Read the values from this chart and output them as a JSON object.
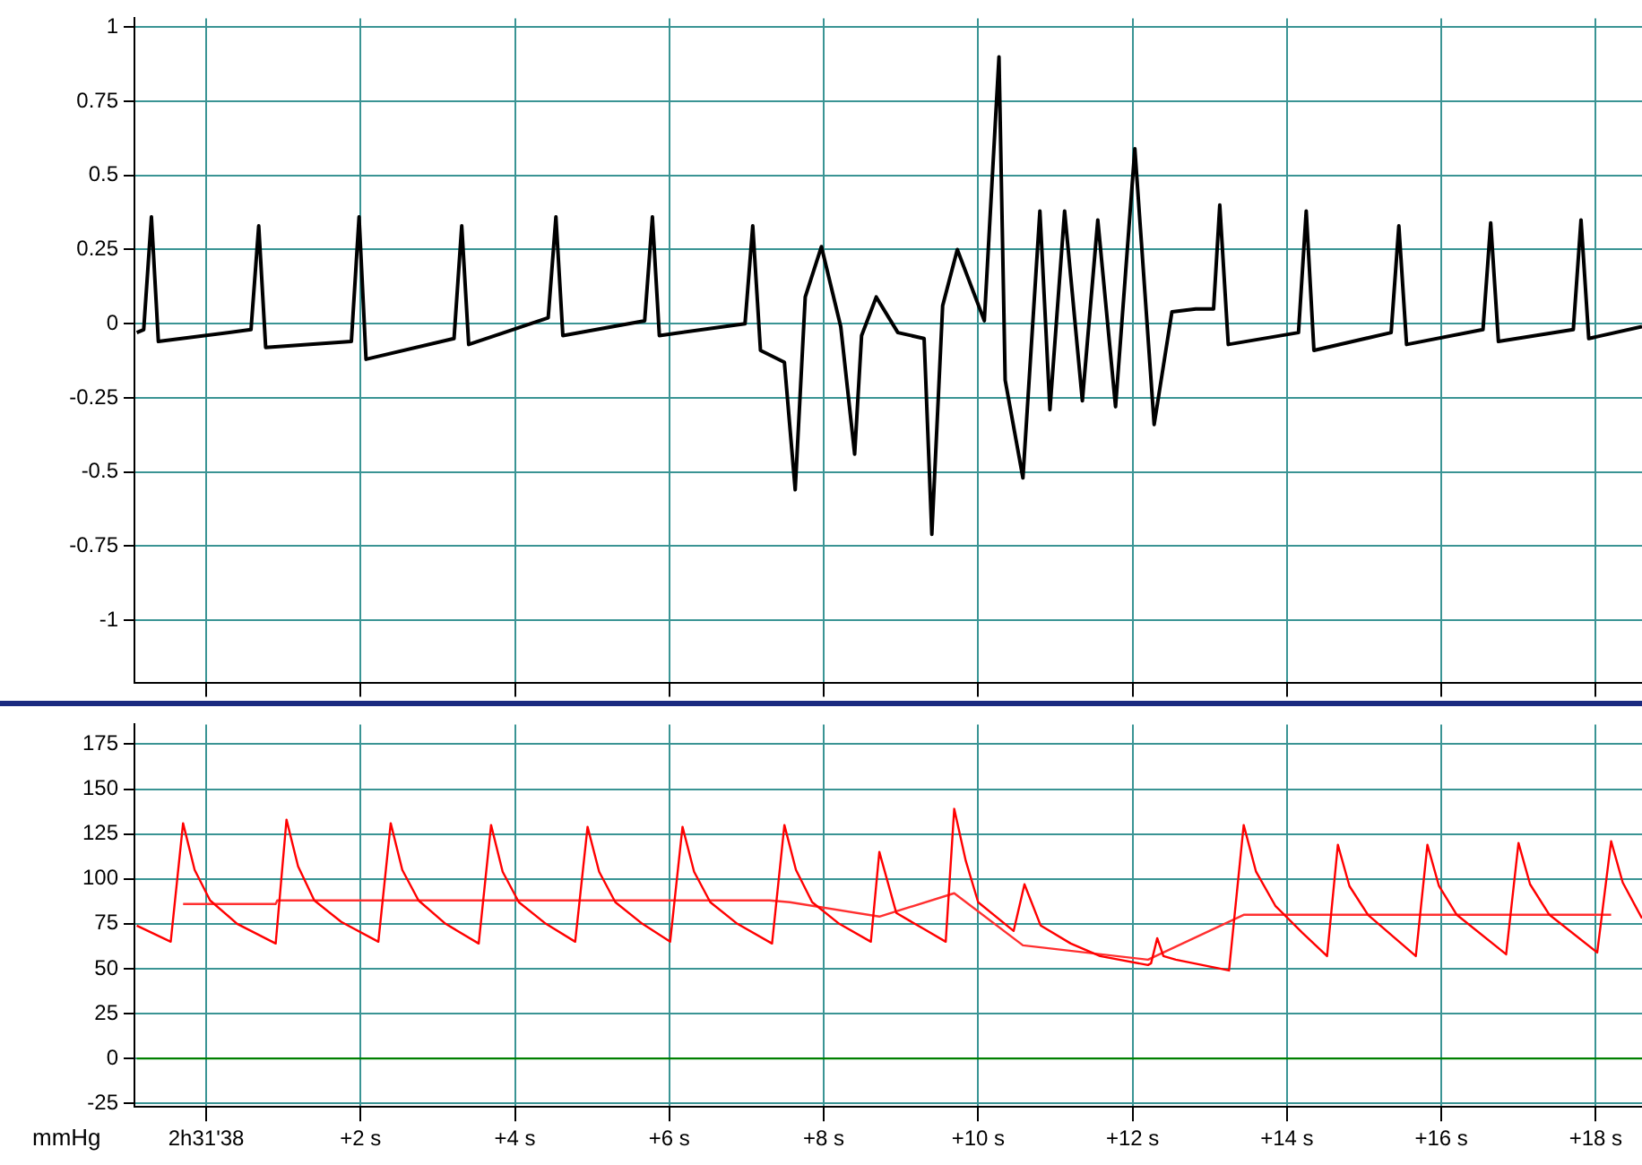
{
  "chart_data": [
    {
      "type": "line",
      "marker": "none",
      "grid": true,
      "tick_labels": "y",
      "xlim": [
        -0.93,
        18.6
      ],
      "ylim": [
        -1.21,
        1.03
      ],
      "xticks": [
        {
          "value": 0,
          "label": null
        },
        {
          "value": 2,
          "label": null
        },
        {
          "value": 4,
          "label": null
        },
        {
          "value": 6,
          "label": null
        },
        {
          "value": 8,
          "label": null
        },
        {
          "value": 10,
          "label": null
        },
        {
          "value": 12,
          "label": null
        },
        {
          "value": 14,
          "label": null
        },
        {
          "value": 16,
          "label": null
        },
        {
          "value": 18,
          "label": null
        }
      ],
      "yticks": [
        -1,
        -0.75,
        -0.5,
        -0.25,
        0,
        0.25,
        0.5,
        0.75,
        1
      ],
      "series": [
        {
          "color": "#000000",
          "x": [
            -0.9,
            -0.81,
            -0.71,
            -0.62,
            0.58,
            0.68,
            0.77,
            1.88,
            1.98,
            2.07,
            3.21,
            3.31,
            3.4,
            4.43,
            4.53,
            4.62,
            5.68,
            5.78,
            5.87,
            6.98,
            7.08,
            7.18,
            7.49,
            7.63,
            7.76,
            7.97,
            8.22,
            8.4,
            8.49,
            8.68,
            8.96,
            9.3,
            9.4,
            9.54,
            9.73,
            10.08,
            10.27,
            10.35,
            10.58,
            10.8,
            10.93,
            11.12,
            11.35,
            11.55,
            11.78,
            12.03,
            12.28,
            12.51,
            12.82,
            13.05,
            13.13,
            13.24,
            14.15,
            14.25,
            14.35,
            15.35,
            15.45,
            15.55,
            16.54,
            16.64,
            16.74,
            17.71,
            17.81,
            17.91,
            18.6
          ],
          "values": [
            -0.03,
            -0.02,
            0.36,
            -0.06,
            -0.02,
            0.33,
            -0.08,
            -0.06,
            0.36,
            -0.12,
            -0.05,
            0.33,
            -0.07,
            0.02,
            0.36,
            -0.04,
            0.01,
            0.36,
            -0.04,
            0,
            0.33,
            -0.09,
            -0.13,
            -0.56,
            0.09,
            0.26,
            -0.01,
            -0.44,
            -0.04,
            0.09,
            -0.03,
            -0.05,
            -0.71,
            0.06,
            0.25,
            0.01,
            0.9,
            -0.19,
            -0.52,
            0.38,
            -0.29,
            0.38,
            -0.26,
            0.35,
            -0.28,
            0.59,
            -0.34,
            0.04,
            0.05,
            0.05,
            0.4,
            -0.07,
            -0.03,
            0.38,
            -0.09,
            -0.03,
            0.33,
            -0.07,
            -0.02,
            0.34,
            -0.06,
            -0.02,
            0.35,
            -0.05,
            -0.01
          ]
        }
      ]
    },
    {
      "type": "line",
      "marker": "none",
      "grid": true,
      "ylabel": "mmHg",
      "xlim": [
        -0.93,
        18.6
      ],
      "ylim": [
        -27,
        186
      ],
      "xticks": [
        {
          "value": 0,
          "label": "2h31'38"
        },
        {
          "value": 2,
          "label": "+2 s"
        },
        {
          "value": 4,
          "label": "+4 s"
        },
        {
          "value": 6,
          "label": "+6 s"
        },
        {
          "value": 8,
          "label": "+8 s"
        },
        {
          "value": 10,
          "label": "+10 s"
        },
        {
          "value": 12,
          "label": "+12 s"
        },
        {
          "value": 14,
          "label": "+14 s"
        },
        {
          "value": 16,
          "label": "+16 s"
        },
        {
          "value": 18,
          "label": "+18 s"
        }
      ],
      "yticks": [
        -25,
        0,
        25,
        50,
        75,
        100,
        125,
        150,
        175
      ],
      "series": [
        {
          "color": "#ff0000",
          "x": [
            -0.9,
            -0.46,
            -0.3,
            -0.15,
            0.05,
            0.4,
            0.9,
            1.04,
            1.19,
            1.4,
            1.75,
            2.23,
            2.39,
            2.54,
            2.75,
            3.1,
            3.53,
            3.69,
            3.84,
            4.05,
            4.4,
            4.78,
            4.94,
            5.09,
            5.3,
            5.65,
            6.01,
            6.17,
            6.32,
            6.53,
            6.88,
            7.33,
            7.49,
            7.64,
            7.85,
            8.2,
            8.61,
            8.72,
            8.94,
            9.3,
            9.58,
            9.69,
            9.84,
            10,
            10.46,
            10.6,
            10.81,
            11.2,
            11.58,
            12.2,
            12.24,
            12.32,
            12.4,
            12.56,
            13.25,
            13.44,
            13.6,
            13.85,
            14.2,
            14.52,
            14.66,
            14.81,
            15.05,
            15.67,
            15.82,
            15.97,
            16.2,
            16.84,
            17,
            17.15,
            17.4,
            18.02,
            18.2,
            18.35,
            18.6
          ],
          "values": [
            74,
            65,
            131,
            105,
            88,
            75,
            64,
            133,
            107,
            88,
            76,
            65,
            131,
            105,
            88,
            75,
            64,
            130,
            104,
            87,
            75,
            65,
            129,
            104,
            87,
            75,
            65,
            129,
            104,
            87,
            75,
            64,
            130,
            105,
            87,
            75,
            65,
            115,
            81,
            72,
            65,
            139,
            110,
            87,
            71,
            97,
            74,
            64,
            57,
            52,
            53,
            67,
            57,
            55,
            49,
            130,
            104,
            85,
            70,
            57,
            119,
            96,
            80,
            57,
            119,
            96,
            80,
            58,
            120,
            97,
            80,
            59,
            121,
            98,
            78
          ]
        },
        {
          "color": "#ff3030",
          "x": [
            -0.3,
            0.9,
            0.92,
            7.3,
            7.56,
            8.72,
            9.69,
            10.58,
            12.2,
            13.44,
            18.2
          ],
          "values": [
            86,
            86,
            88,
            88,
            87,
            79,
            92,
            63,
            55,
            80,
            80
          ]
        },
        {
          "color": "#008000",
          "x": [
            -0.9,
            18.6
          ],
          "values": [
            0,
            0
          ]
        }
      ]
    }
  ]
}
